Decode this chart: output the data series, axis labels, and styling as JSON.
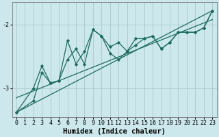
{
  "xlabel": "Humidex (Indice chaleur)",
  "ylabel": "",
  "background_color": "#cce8ec",
  "grid_color": "#aac8cc",
  "line_color": "#1a6b60",
  "xlim": [
    -0.5,
    23.5
  ],
  "ylim": [
    -3.45,
    -1.65
  ],
  "yticks": [
    -3.0,
    -2.0
  ],
  "xticks": [
    0,
    1,
    2,
    3,
    4,
    5,
    6,
    7,
    8,
    9,
    10,
    11,
    12,
    13,
    14,
    15,
    16,
    17,
    18,
    19,
    20,
    21,
    22,
    23
  ],
  "series1": {
    "x": [
      0,
      2,
      3,
      4,
      5,
      6,
      7,
      8,
      9,
      10,
      11,
      12,
      13,
      14,
      15,
      16,
      17,
      18,
      19,
      20,
      21,
      22,
      23
    ],
    "y": [
      -3.38,
      -3.2,
      -2.75,
      -2.92,
      -2.88,
      -2.25,
      -2.62,
      -2.42,
      -2.08,
      -2.18,
      -2.35,
      -2.28,
      -2.42,
      -2.32,
      -2.22,
      -2.18,
      -2.38,
      -2.28,
      -2.12,
      -2.12,
      -2.12,
      -2.05,
      -1.78
    ]
  },
  "series2": {
    "x": [
      0,
      2,
      3,
      4,
      5,
      6,
      7,
      8,
      9,
      10,
      11,
      12,
      13,
      14,
      15,
      16,
      17,
      18,
      19,
      20,
      21,
      22,
      23
    ],
    "y": [
      -3.38,
      -3.0,
      -2.65,
      -2.92,
      -2.88,
      -2.55,
      -2.38,
      -2.62,
      -2.08,
      -2.18,
      -2.45,
      -2.55,
      -2.42,
      -2.22,
      -2.22,
      -2.18,
      -2.38,
      -2.28,
      -2.12,
      -2.12,
      -2.12,
      -2.05,
      -1.78
    ]
  },
  "line1": {
    "x": [
      0,
      23
    ],
    "y": [
      -3.38,
      -1.78
    ]
  },
  "line2": {
    "x": [
      0,
      23
    ],
    "y": [
      -3.15,
      -1.92
    ]
  },
  "marker": "D",
  "marker_size": 2.2,
  "linewidth": 0.9,
  "tick_fontsize": 6.0,
  "xlabel_fontsize": 7.5
}
